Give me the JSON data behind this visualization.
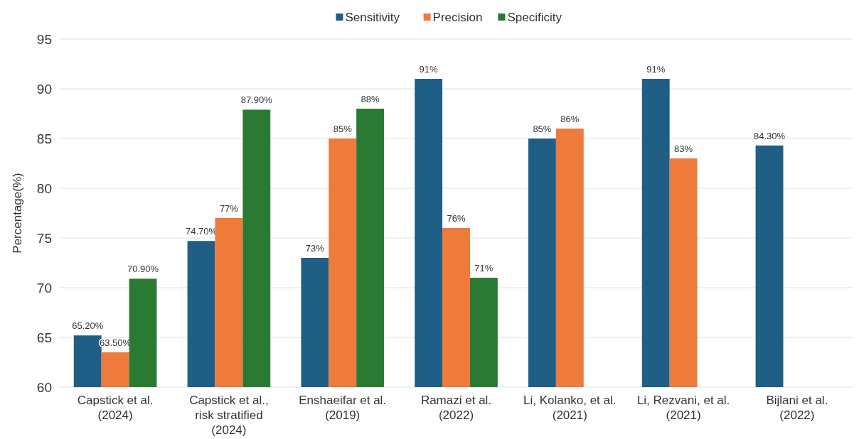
{
  "chart_data": {
    "type": "bar",
    "ylabel": "Percentage(%)",
    "categories": [
      "Capstick et al. (2024)",
      "Capstick et al., risk stratified (2024)",
      "Enshaeifar et al. (2019)",
      "Ramazi et al. (2022)",
      "Li, Kolanko, et al. (2021)",
      "Li, Rezvani, et al. (2021)",
      "Bijlani et al. (2022)"
    ],
    "series": [
      {
        "name": "Sensitivity",
        "color": "#1f5f86",
        "values": [
          65.2,
          74.7,
          73,
          91,
          85,
          91,
          84.3
        ],
        "value_labels": [
          "65.20%",
          "74.70%",
          "73%",
          "91%",
          "85%",
          "91%",
          "84.30%"
        ]
      },
      {
        "name": "Precision",
        "color": "#ee7a3c",
        "values": [
          63.5,
          77,
          85,
          76,
          86,
          83,
          null
        ],
        "value_labels": [
          "63.50%",
          "77%",
          "85%",
          "76%",
          "86%",
          "83%",
          null
        ]
      },
      {
        "name": "Specificity",
        "color": "#2a7a34",
        "values": [
          70.9,
          87.9,
          88,
          71,
          null,
          null,
          null
        ],
        "value_labels": [
          "70.90%",
          "87.90%",
          "88%",
          "71%",
          null,
          null,
          null
        ]
      }
    ],
    "ylim": [
      60,
      95
    ],
    "yticks": [
      60,
      65,
      70,
      75,
      80,
      85,
      90,
      95
    ],
    "grid": "y",
    "legend": "top"
  }
}
